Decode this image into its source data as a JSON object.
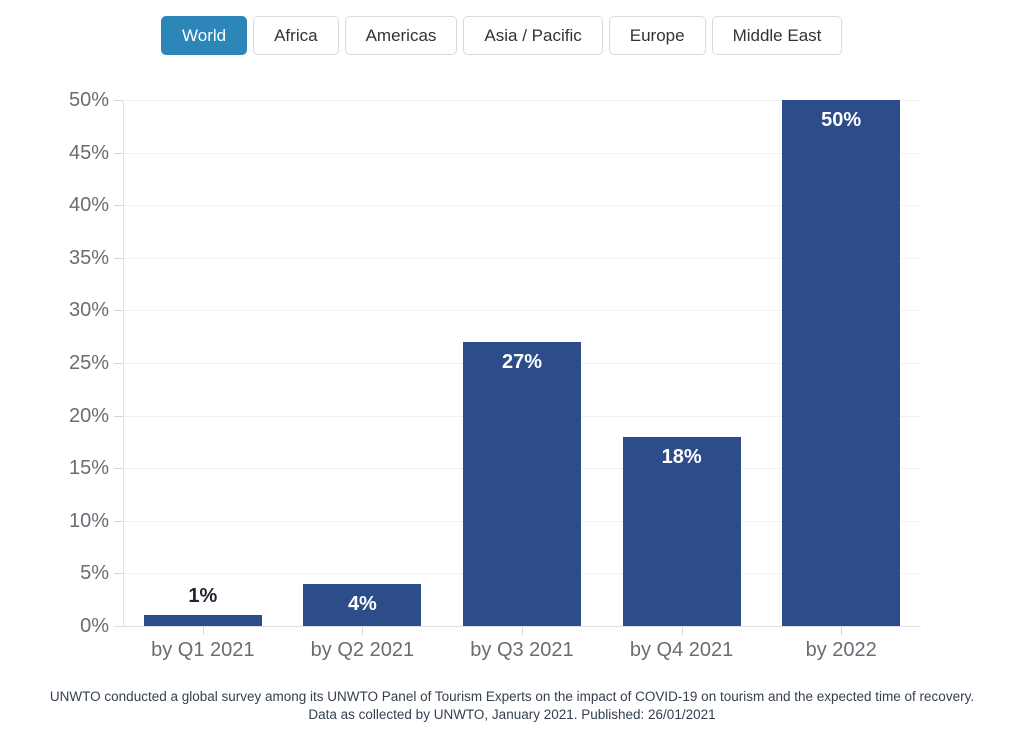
{
  "tabs": {
    "items": [
      {
        "label": "World",
        "active": true
      },
      {
        "label": "Africa",
        "active": false
      },
      {
        "label": "Americas",
        "active": false
      },
      {
        "label": "Asia / Pacific",
        "active": false
      },
      {
        "label": "Europe",
        "active": false
      },
      {
        "label": "Middle East",
        "active": false
      }
    ]
  },
  "chart_data": {
    "type": "bar",
    "title": "",
    "xlabel": "",
    "ylabel": "",
    "categories": [
      "by Q1 2021",
      "by Q2 2021",
      "by Q3 2021",
      "by Q4 2021",
      "by 2022"
    ],
    "values": [
      1,
      4,
      27,
      18,
      50
    ],
    "value_labels": [
      "1%",
      "4%",
      "27%",
      "18%",
      "50%"
    ],
    "ylim": [
      0,
      50
    ],
    "ytick_step": 5,
    "ytick_labels": [
      "0%",
      "5%",
      "10%",
      "15%",
      "20%",
      "25%",
      "30%",
      "35%",
      "40%",
      "45%",
      "50%"
    ],
    "grid": true,
    "legend": false
  },
  "footer": {
    "line1": "UNWTO conducted a global survey among its UNWTO Panel of Tourism Experts on the impact of COVID-19 on tourism and the expected time of recovery.",
    "line2": "Data as collected by UNWTO, January 2021. Published: 26/01/2021"
  },
  "colors": {
    "bar": "#2d4c8a",
    "tab_active_bg": "#2c86b8",
    "tab_active_text": "#ffffff",
    "tab_inactive_text": "#333333",
    "axis_label": "#6b6b74",
    "value_label_inside": "#ffffff",
    "value_label_outside": "#1f2430",
    "footer_text": "#35404f"
  }
}
